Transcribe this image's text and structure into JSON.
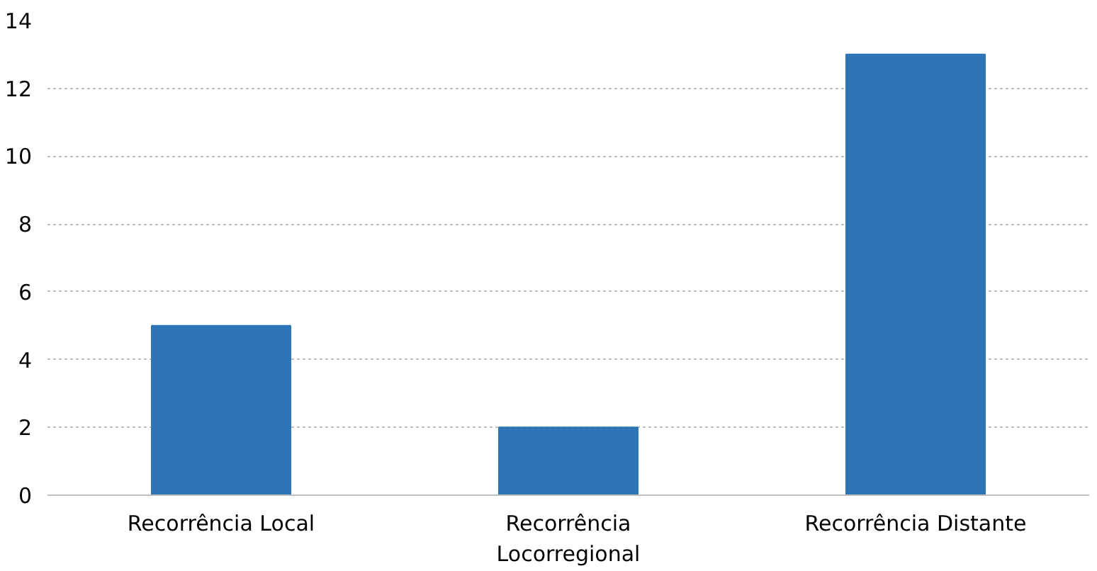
{
  "chart_data": {
    "type": "bar",
    "categories": [
      "Recorrência Local",
      "Recorrência Locorregional",
      "Recorrência Distante"
    ],
    "values": [
      5,
      2,
      13
    ],
    "color": "#2e75b6",
    "ylim": [
      0,
      14
    ],
    "yticks": [
      0,
      2,
      4,
      6,
      8,
      10,
      12,
      14
    ],
    "grid": "y"
  }
}
